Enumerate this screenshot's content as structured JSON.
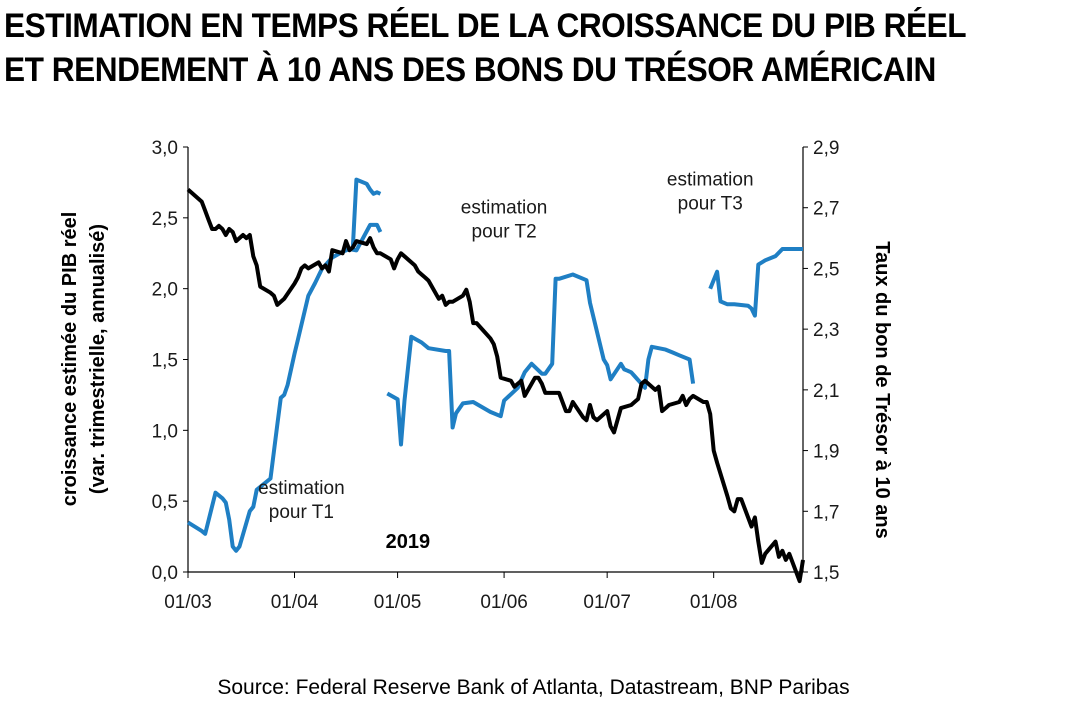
{
  "title_lines": [
    "ESTIMATION EN TEMPS RÉEL DE LA CROISSANCE DU PIB RÉEL",
    "ET RENDEMENT À 10 ANS DES BONS DU TRÉSOR AMÉRICAIN"
  ],
  "source": "Source:  Federal Reserve Bank of Atlanta, Datastream, BNP Paribas",
  "chart_data": {
    "type": "line",
    "x_start": "2019-03-01",
    "x_end": "2019-08-27",
    "x_ticks": [
      "01/03",
      "01/04",
      "01/05",
      "01/06",
      "01/07",
      "01/08"
    ],
    "y_left": {
      "label_lines": [
        "croissance estimée du PIB réel",
        "(var. trimestrielle, annualisé)"
      ],
      "ticks": [
        "0,0",
        "0,5",
        "1,0",
        "1,5",
        "2,0",
        "2,5",
        "3,0"
      ],
      "range": [
        0,
        3
      ]
    },
    "y_right": {
      "label": "Taux du bon de Trésor à 10 ans",
      "ticks": [
        "1,5",
        "1,7",
        "1,9",
        "2,1",
        "2,3",
        "2,5",
        "2,7",
        "2,9"
      ],
      "range": [
        1.5,
        2.9
      ]
    },
    "colors": {
      "gdp": "#1f7fc4",
      "yield": "#000000"
    },
    "annotations": [
      {
        "lines": [
          "estimation",
          "pour T1"
        ],
        "x": "2019-04-03",
        "y_left": 0.55
      },
      {
        "lines": [
          "estimation",
          "pour T2"
        ],
        "x": "2019-06-01",
        "y_left": 2.53
      },
      {
        "lines": [
          "estimation",
          "pour T3"
        ],
        "x": "2019-07-31",
        "y_left": 2.73
      },
      {
        "lines": [
          "2019"
        ],
        "x": "2019-05-04",
        "y_left": 0.17,
        "bold": true
      }
    ],
    "series": [
      {
        "axis": "left",
        "color": "#1f7fc4",
        "segments": [
          {
            "x": [
              "2019-03-01",
              "2019-03-05",
              "2019-03-06",
              "2019-03-09",
              "2019-03-11",
              "2019-03-12",
              "2019-03-13",
              "2019-03-14",
              "2019-03-15",
              "2019-03-16",
              "2019-03-19",
              "2019-03-20",
              "2019-03-21",
              "2019-03-25",
              "2019-03-26",
              "2019-03-27",
              "2019-03-28",
              "2019-03-29",
              "2019-03-30",
              "2019-04-01",
              "2019-04-02",
              "2019-04-05",
              "2019-04-07",
              "2019-04-09",
              "2019-04-12",
              "2019-04-15",
              "2019-04-17",
              "2019-04-19",
              "2019-04-23",
              "2019-04-25",
              "2019-04-26"
            ],
            "y": [
              0.35,
              0.29,
              0.27,
              0.56,
              0.52,
              0.49,
              0.37,
              0.18,
              0.15,
              0.18,
              0.43,
              0.46,
              0.58,
              0.66,
              0.85,
              1.04,
              1.23,
              1.25,
              1.32,
              1.54,
              1.64,
              1.95,
              2.04,
              2.14,
              2.22,
              2.26,
              2.28,
              2.27,
              2.45,
              2.45,
              2.4
            ]
          },
          {
            "x": [
              "2019-04-18",
              "2019-04-19",
              "2019-04-22",
              "2019-04-23",
              "2019-04-24",
              "2019-04-25",
              "2019-04-26"
            ],
            "y": [
              2.3,
              2.77,
              2.74,
              2.7,
              2.67,
              2.68,
              2.67
            ]
          },
          {
            "x": [
              "2019-04-28",
              "2019-05-01",
              "2019-05-02",
              "2019-05-03",
              "2019-05-05",
              "2019-05-08",
              "2019-05-10",
              "2019-05-15",
              "2019-05-16",
              "2019-05-17",
              "2019-05-18",
              "2019-05-20",
              "2019-05-23",
              "2019-05-28",
              "2019-05-31",
              "2019-06-01",
              "2019-06-05",
              "2019-06-07",
              "2019-06-09",
              "2019-06-12",
              "2019-06-13",
              "2019-06-15",
              "2019-06-16",
              "2019-06-17",
              "2019-06-21",
              "2019-06-25",
              "2019-06-26",
              "2019-06-30",
              "2019-07-01",
              "2019-07-02",
              "2019-07-05",
              "2019-07-06",
              "2019-07-07",
              "2019-07-08",
              "2019-07-12",
              "2019-07-13",
              "2019-07-14",
              "2019-07-16",
              "2019-07-18",
              "2019-07-20",
              "2019-07-22",
              "2019-07-25",
              "2019-07-26"
            ],
            "y": [
              1.26,
              1.22,
              0.9,
              1.21,
              1.66,
              1.62,
              1.58,
              1.56,
              1.56,
              1.02,
              1.12,
              1.19,
              1.2,
              1.13,
              1.1,
              1.21,
              1.3,
              1.41,
              1.47,
              1.4,
              1.4,
              1.47,
              2.07,
              2.07,
              2.1,
              2.06,
              1.9,
              1.5,
              1.46,
              1.36,
              1.47,
              1.43,
              1.42,
              1.41,
              1.3,
              1.5,
              1.59,
              1.58,
              1.57,
              1.55,
              1.53,
              1.5,
              1.33
            ]
          },
          {
            "x": [
              "2019-07-31",
              "2019-08-02",
              "2019-08-03",
              "2019-08-05",
              "2019-08-07",
              "2019-08-11",
              "2019-08-12",
              "2019-08-13",
              "2019-08-14",
              "2019-08-16",
              "2019-08-19",
              "2019-08-21",
              "2019-08-23",
              "2019-08-27"
            ],
            "y": [
              2.0,
              2.12,
              1.91,
              1.89,
              1.89,
              1.88,
              1.86,
              1.81,
              2.17,
              2.2,
              2.23,
              2.28,
              2.28,
              2.28
            ]
          }
        ]
      },
      {
        "axis": "right",
        "color": "#000000",
        "segments": [
          {
            "x": [
              "2019-03-01",
              "2019-03-03",
              "2019-03-05",
              "2019-03-06",
              "2019-03-07",
              "2019-03-08",
              "2019-03-09",
              "2019-03-10",
              "2019-03-11",
              "2019-03-12",
              "2019-03-13",
              "2019-03-14",
              "2019-03-15",
              "2019-03-17",
              "2019-03-18",
              "2019-03-19",
              "2019-03-20",
              "2019-03-21",
              "2019-03-22",
              "2019-03-25",
              "2019-03-26",
              "2019-03-27",
              "2019-03-28",
              "2019-03-29",
              "2019-04-01",
              "2019-04-02",
              "2019-04-03",
              "2019-04-04",
              "2019-04-05",
              "2019-04-08",
              "2019-04-09",
              "2019-04-10",
              "2019-04-11",
              "2019-04-12",
              "2019-04-15",
              "2019-04-16",
              "2019-04-17",
              "2019-04-18",
              "2019-04-19",
              "2019-04-22",
              "2019-04-23",
              "2019-04-24",
              "2019-04-25",
              "2019-04-26",
              "2019-04-29",
              "2019-04-30",
              "2019-05-01",
              "2019-05-02",
              "2019-05-03",
              "2019-05-06",
              "2019-05-07",
              "2019-05-08",
              "2019-05-09",
              "2019-05-10",
              "2019-05-13",
              "2019-05-14",
              "2019-05-15",
              "2019-05-16",
              "2019-05-17",
              "2019-05-20",
              "2019-05-21",
              "2019-05-22",
              "2019-05-23",
              "2019-05-24",
              "2019-05-28",
              "2019-05-29",
              "2019-05-30",
              "2019-05-31",
              "2019-06-03",
              "2019-06-04",
              "2019-06-05",
              "2019-06-06",
              "2019-06-07",
              "2019-06-10",
              "2019-06-11",
              "2019-06-12",
              "2019-06-13",
              "2019-06-14",
              "2019-06-17",
              "2019-06-18",
              "2019-06-19",
              "2019-06-20",
              "2019-06-21",
              "2019-06-24",
              "2019-06-25",
              "2019-06-26",
              "2019-06-27",
              "2019-06-28",
              "2019-07-01",
              "2019-07-02",
              "2019-07-03",
              "2019-07-05",
              "2019-07-08",
              "2019-07-09",
              "2019-07-10",
              "2019-07-11",
              "2019-07-12",
              "2019-07-15",
              "2019-07-16",
              "2019-07-17",
              "2019-07-18",
              "2019-07-19",
              "2019-07-22",
              "2019-07-23",
              "2019-07-24",
              "2019-07-25",
              "2019-07-26",
              "2019-07-29",
              "2019-07-30",
              "2019-07-31",
              "2019-08-01",
              "2019-08-02",
              "2019-08-05",
              "2019-08-06",
              "2019-08-07",
              "2019-08-08",
              "2019-08-09",
              "2019-08-12",
              "2019-08-13",
              "2019-08-14",
              "2019-08-15",
              "2019-08-16",
              "2019-08-19",
              "2019-08-20",
              "2019-08-21",
              "2019-08-22",
              "2019-08-23",
              "2019-08-26",
              "2019-08-27"
            ],
            "y": [
              2.76,
              2.74,
              2.72,
              2.69,
              2.66,
              2.63,
              2.63,
              2.64,
              2.63,
              2.61,
              2.63,
              2.62,
              2.59,
              2.61,
              2.6,
              2.61,
              2.54,
              2.51,
              2.44,
              2.42,
              2.41,
              2.38,
              2.39,
              2.4,
              2.45,
              2.47,
              2.5,
              2.51,
              2.5,
              2.52,
              2.5,
              2.51,
              2.49,
              2.56,
              2.55,
              2.59,
              2.56,
              2.57,
              2.59,
              2.58,
              2.6,
              2.57,
              2.55,
              2.55,
              2.53,
              2.5,
              2.53,
              2.55,
              2.54,
              2.51,
              2.49,
              2.48,
              2.47,
              2.46,
              2.4,
              2.41,
              2.38,
              2.39,
              2.39,
              2.41,
              2.43,
              2.39,
              2.32,
              2.32,
              2.27,
              2.25,
              2.21,
              2.14,
              2.13,
              2.11,
              2.12,
              2.13,
              2.08,
              2.14,
              2.14,
              2.12,
              2.09,
              2.09,
              2.09,
              2.06,
              2.03,
              2.03,
              2.06,
              2.01,
              2.0,
              2.05,
              2.01,
              2.0,
              2.03,
              1.98,
              1.96,
              2.04,
              2.05,
              2.06,
              2.07,
              2.12,
              2.13,
              2.1,
              2.11,
              2.03,
              2.04,
              2.05,
              2.06,
              2.08,
              2.05,
              2.07,
              2.08,
              2.06,
              2.06,
              2.02,
              1.9,
              1.86,
              1.75,
              1.71,
              1.7,
              1.74,
              1.74,
              1.65,
              1.68,
              1.6,
              1.53,
              1.56,
              1.6,
              1.55,
              1.57,
              1.54,
              1.56,
              1.47,
              1.54
            ]
          }
        ]
      }
    ]
  }
}
